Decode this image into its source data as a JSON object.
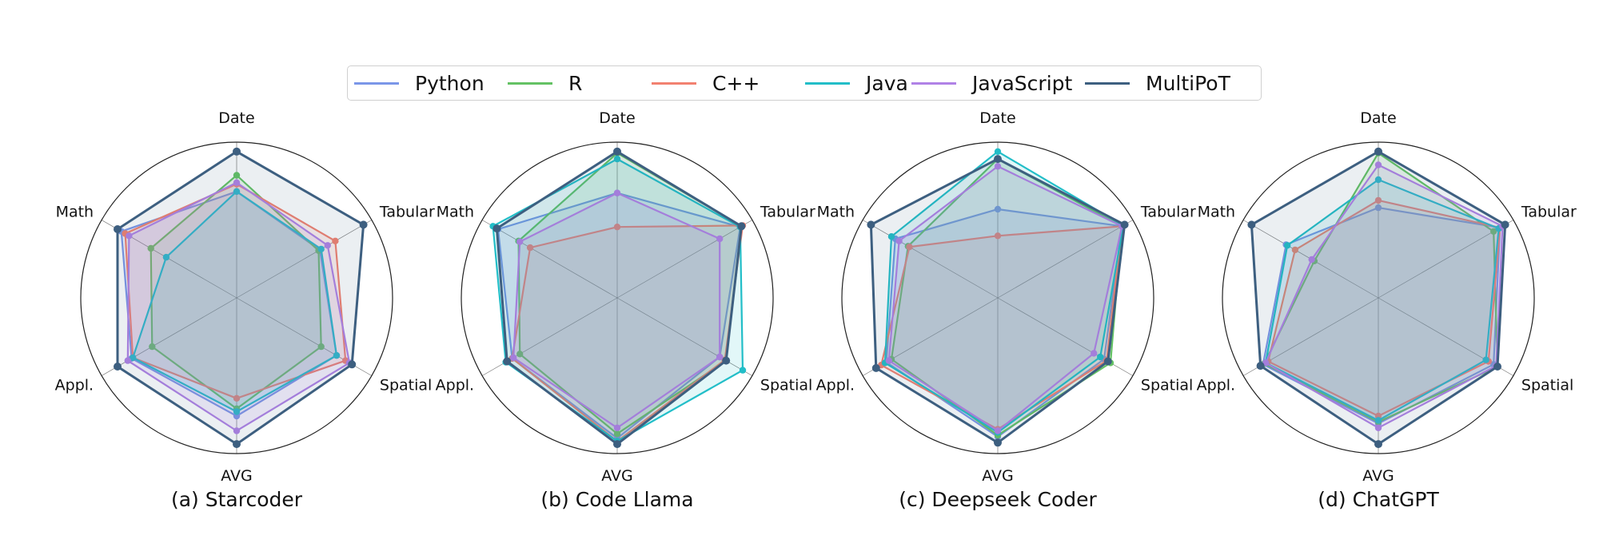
{
  "chart_data": {
    "type": "radar",
    "axes": [
      "Date",
      "Tabular",
      "Spatial",
      "AVG",
      "Appl.",
      "Math"
    ],
    "rlim": [
      0,
      1
    ],
    "legend": [
      {
        "name": "Python",
        "color": "#7b96e8"
      },
      {
        "name": "R",
        "color": "#64c264"
      },
      {
        "name": "C++",
        "color": "#f28170"
      },
      {
        "name": "Java",
        "color": "#22bec8"
      },
      {
        "name": "JavaScript",
        "color": "#b082e6"
      },
      {
        "name": "MultiPoT",
        "color": "#3d5f80"
      }
    ],
    "charts": [
      {
        "caption": "(a) Starcoder",
        "series": [
          {
            "name": "Python",
            "values": [
              0.72,
              0.65,
              0.78,
              0.8,
              0.82,
              0.9
            ]
          },
          {
            "name": "R",
            "values": [
              0.83,
              0.64,
              0.66,
              0.75,
              0.66,
              0.67
            ]
          },
          {
            "name": "C++",
            "values": [
              0.77,
              0.77,
              0.85,
              0.68,
              0.81,
              0.87
            ]
          },
          {
            "name": "Java",
            "values": [
              0.72,
              0.66,
              0.78,
              0.77,
              0.81,
              0.55
            ]
          },
          {
            "name": "JavaScript",
            "values": [
              0.78,
              0.71,
              0.88,
              0.9,
              0.85,
              0.84
            ]
          },
          {
            "name": "MultiPoT",
            "values": [
              0.99,
              0.99,
              0.9,
              0.99,
              0.93,
              0.93
            ]
          }
        ]
      },
      {
        "caption": "(b) Code Llama",
        "series": [
          {
            "name": "Python",
            "values": [
              0.71,
              0.96,
              0.8,
              0.95,
              0.82,
              0.93
            ]
          },
          {
            "name": "R",
            "values": [
              0.98,
              0.97,
              0.85,
              0.92,
              0.76,
              0.77
            ]
          },
          {
            "name": "C++",
            "values": [
              0.48,
              0.98,
              0.84,
              0.97,
              0.82,
              0.68
            ]
          },
          {
            "name": "Java",
            "values": [
              0.94,
              0.96,
              0.98,
              0.97,
              0.87,
              0.97
            ]
          },
          {
            "name": "JavaScript",
            "values": [
              0.71,
              0.8,
              0.8,
              0.88,
              0.81,
              0.76
            ]
          },
          {
            "name": "MultiPoT",
            "values": [
              0.99,
              0.97,
              0.85,
              0.99,
              0.86,
              0.94
            ]
          }
        ]
      },
      {
        "caption": "(c) Deepseek Coder",
        "series": [
          {
            "name": "Python",
            "values": [
              0.6,
              0.97,
              0.83,
              0.94,
              0.87,
              0.8
            ]
          },
          {
            "name": "R",
            "values": [
              0.94,
              0.97,
              0.88,
              0.93,
              0.83,
              0.7
            ]
          },
          {
            "name": "C++",
            "values": [
              0.42,
              0.97,
              0.85,
              0.89,
              0.91,
              0.69
            ]
          },
          {
            "name": "Java",
            "values": [
              0.99,
              0.98,
              0.8,
              0.91,
              0.88,
              0.83
            ]
          },
          {
            "name": "JavaScript",
            "values": [
              0.89,
              0.97,
              0.75,
              0.9,
              0.85,
              0.77
            ]
          },
          {
            "name": "MultiPoT",
            "values": [
              0.94,
              0.99,
              0.86,
              0.98,
              0.95,
              0.99
            ]
          }
        ]
      },
      {
        "caption": "(d) ChatGPT",
        "series": [
          {
            "name": "Python",
            "values": [
              0.61,
              0.95,
              0.9,
              0.85,
              0.9,
              0.72
            ]
          },
          {
            "name": "R",
            "values": [
              0.98,
              0.9,
              0.93,
              0.84,
              0.89,
              0.5
            ]
          },
          {
            "name": "C++",
            "values": [
              0.66,
              0.95,
              0.86,
              0.8,
              0.86,
              0.65
            ]
          },
          {
            "name": "Java",
            "values": [
              0.8,
              0.94,
              0.84,
              0.83,
              0.88,
              0.71
            ]
          },
          {
            "name": "JavaScript",
            "values": [
              0.9,
              0.97,
              0.92,
              0.88,
              0.88,
              0.52
            ]
          },
          {
            "name": "MultiPoT",
            "values": [
              0.99,
              0.99,
              0.93,
              0.99,
              0.92,
              0.99
            ]
          }
        ]
      }
    ]
  }
}
